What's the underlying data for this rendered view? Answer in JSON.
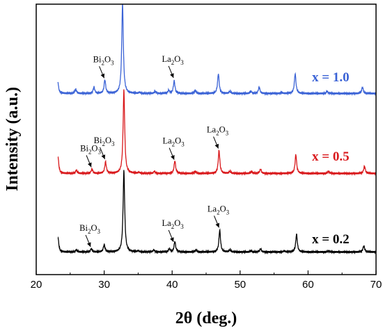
{
  "chart_data": {
    "type": "line",
    "xlabel": "2θ (deg.)",
    "ylabel": "Intensity (a.u.)",
    "xlim": [
      20,
      70
    ],
    "x_ticks": [
      "20",
      "30",
      "40",
      "50",
      "60",
      "70"
    ],
    "y_ticks_shown": false,
    "grid": false,
    "baseline_intensity": 0.05,
    "peak_width_deg": 0.14,
    "series": [
      {
        "name": "x = 0.2",
        "color": "#000000",
        "peaks": [
          [
            23.2,
            0.14
          ],
          [
            25.9,
            0.02
          ],
          [
            28.1,
            0.03
          ],
          [
            30.0,
            0.07
          ],
          [
            32.9,
            0.78
          ],
          [
            35.0,
            0.01
          ],
          [
            37.3,
            0.02
          ],
          [
            39.6,
            0.03
          ],
          [
            40.4,
            0.1
          ],
          [
            43.5,
            0.02
          ],
          [
            47.0,
            0.21
          ],
          [
            48.5,
            0.02
          ],
          [
            51.6,
            0.01
          ],
          [
            53.0,
            0.03
          ],
          [
            56.5,
            0.01
          ],
          [
            58.3,
            0.17
          ],
          [
            63.0,
            0.01
          ],
          [
            68.2,
            0.06
          ]
        ]
      },
      {
        "name": "x = 0.5",
        "color": "#d9191c",
        "peaks": [
          [
            23.2,
            0.16
          ],
          [
            25.9,
            0.03
          ],
          [
            28.2,
            0.04
          ],
          [
            30.2,
            0.11
          ],
          [
            32.9,
            0.8
          ],
          [
            35.1,
            0.01
          ],
          [
            37.4,
            0.02
          ],
          [
            40.4,
            0.12
          ],
          [
            43.4,
            0.02
          ],
          [
            46.9,
            0.22
          ],
          [
            48.5,
            0.02
          ],
          [
            51.7,
            0.02
          ],
          [
            53.0,
            0.04
          ],
          [
            58.2,
            0.18
          ],
          [
            63.0,
            0.02
          ],
          [
            68.3,
            0.07
          ]
        ]
      },
      {
        "name": "x = 1.0",
        "color": "#3b63d6",
        "peaks": [
          [
            23.1,
            0.18
          ],
          [
            25.8,
            0.04
          ],
          [
            28.5,
            0.06
          ],
          [
            30.1,
            0.13
          ],
          [
            32.7,
            0.86
          ],
          [
            35.2,
            0.01
          ],
          [
            37.5,
            0.02
          ],
          [
            39.5,
            0.03
          ],
          [
            40.3,
            0.12
          ],
          [
            43.4,
            0.03
          ],
          [
            46.8,
            0.19
          ],
          [
            48.5,
            0.02
          ],
          [
            51.6,
            0.02
          ],
          [
            52.8,
            0.06
          ],
          [
            56.1,
            0.01
          ],
          [
            58.1,
            0.19
          ],
          [
            62.8,
            0.02
          ],
          [
            68.0,
            0.06
          ]
        ]
      }
    ],
    "annotations": [
      {
        "series": "x = 1.0",
        "text": "Bi",
        "sub1": "2",
        "mid": "O",
        "sub2": "3",
        "x": 30.1
      },
      {
        "series": "x = 1.0",
        "text": "La",
        "sub1": "2",
        "mid": "O",
        "sub2": "3",
        "x": 40.3
      },
      {
        "series": "x = 0.5",
        "text": "Bi",
        "sub1": "2",
        "mid": "O",
        "sub2": "3",
        "x": 28.2
      },
      {
        "series": "x = 0.5",
        "text": "Bi",
        "sub1": "2",
        "mid": "O",
        "sub2": "3",
        "x": 30.2
      },
      {
        "series": "x = 0.5",
        "text": "La",
        "sub1": "2",
        "mid": "O",
        "sub2": "3",
        "x": 40.4
      },
      {
        "series": "x = 0.5",
        "text": "La",
        "sub1": "2",
        "mid": "O",
        "sub2": "3",
        "x": 46.9
      },
      {
        "series": "x = 0.2",
        "text": "Bi",
        "sub1": "2",
        "mid": "O",
        "sub2": "3",
        "x": 28.1
      },
      {
        "series": "x = 0.2",
        "text": "La",
        "sub1": "2",
        "mid": "O",
        "sub2": "3",
        "x": 40.3
      },
      {
        "series": "x = 0.2",
        "text": "La",
        "sub1": "2",
        "mid": "O",
        "sub2": "3",
        "x": 47.0
      }
    ]
  }
}
